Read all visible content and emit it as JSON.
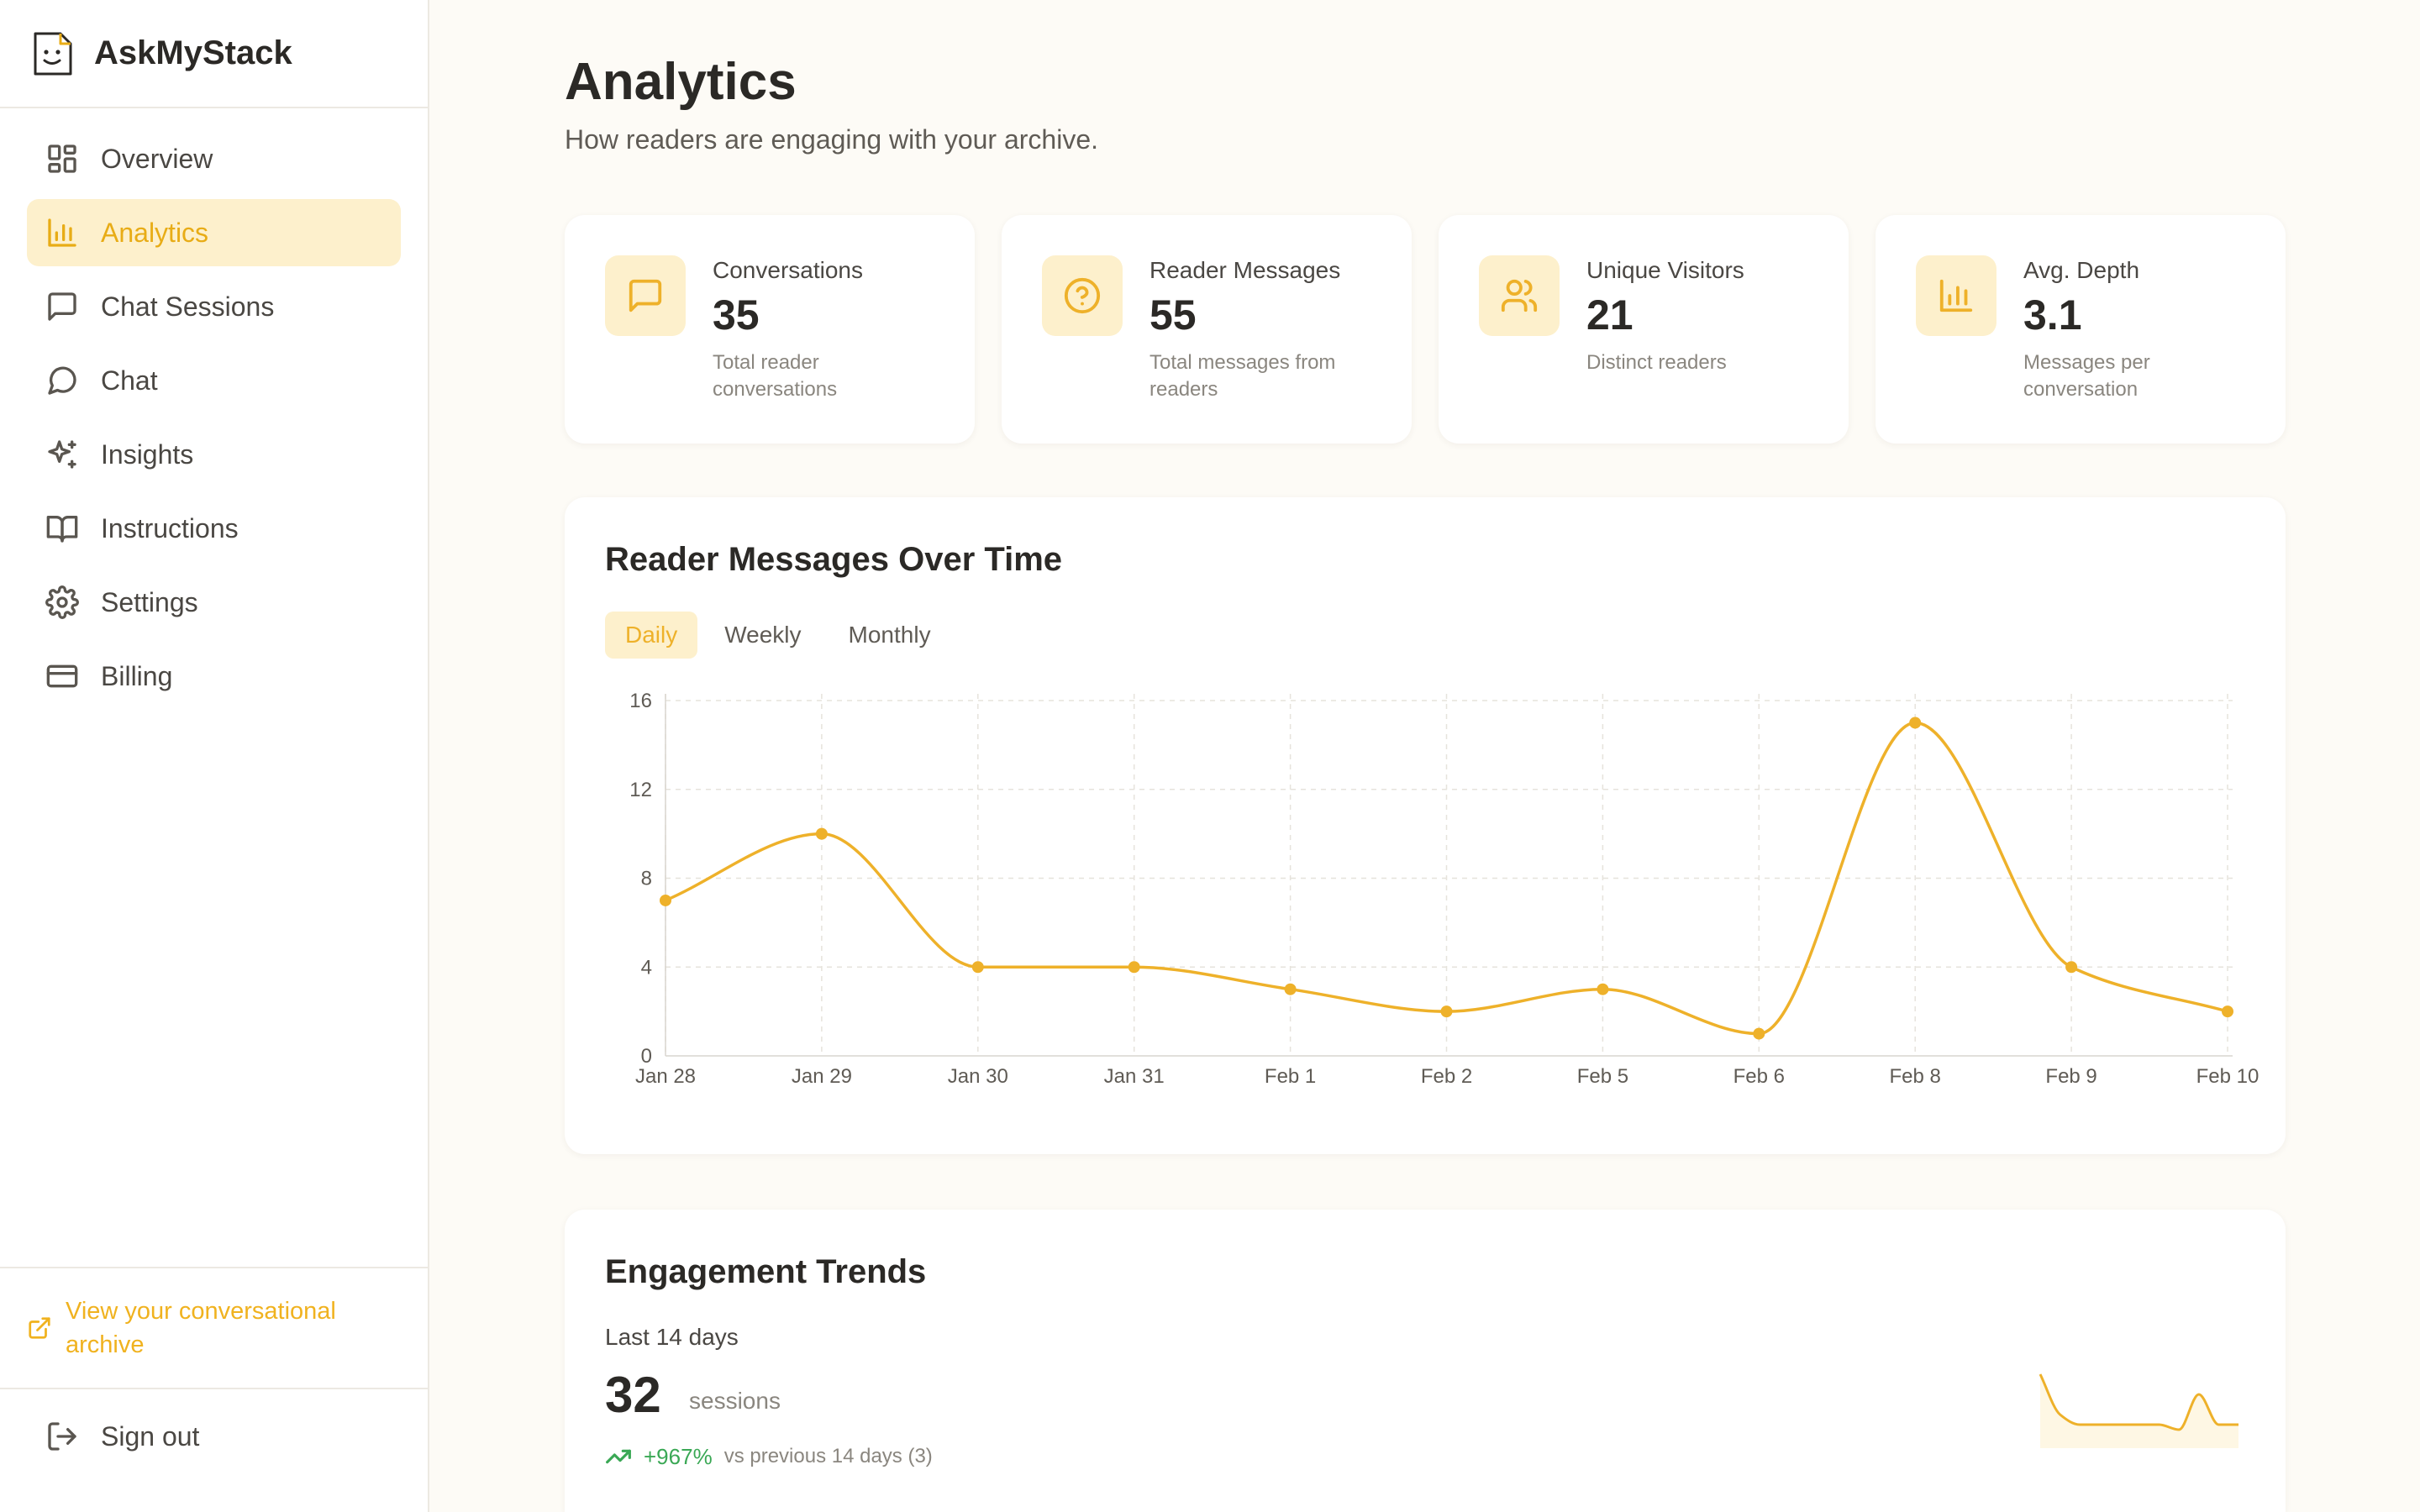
{
  "brand": {
    "name": "AskMyStack"
  },
  "nav": {
    "items": [
      {
        "label": "Overview",
        "icon": "grid-icon"
      },
      {
        "label": "Analytics",
        "icon": "bar-chart-icon",
        "active": true
      },
      {
        "label": "Chat Sessions",
        "icon": "message-square-icon"
      },
      {
        "label": "Chat",
        "icon": "message-circle-icon"
      },
      {
        "label": "Insights",
        "icon": "sparkles-icon"
      },
      {
        "label": "Instructions",
        "icon": "book-open-icon"
      },
      {
        "label": "Settings",
        "icon": "gear-icon"
      },
      {
        "label": "Billing",
        "icon": "credit-card-icon"
      }
    ],
    "archive_link": "View your conversational archive",
    "sign_out": "Sign out"
  },
  "header": {
    "title": "Analytics",
    "subtitle": "How readers are engaging with your archive."
  },
  "stats": [
    {
      "label": "Conversations",
      "value": "35",
      "desc": "Total reader conversations",
      "icon": "message-square-icon"
    },
    {
      "label": "Reader Messages",
      "value": "55",
      "desc": "Total messages from readers",
      "icon": "help-circle-icon"
    },
    {
      "label": "Unique Visitors",
      "value": "21",
      "desc": "Distinct readers",
      "icon": "users-icon"
    },
    {
      "label": "Avg. Depth",
      "value": "3.1",
      "desc": "Messages per conversation",
      "icon": "bar-chart-icon"
    }
  ],
  "messages_chart": {
    "title": "Reader Messages Over Time",
    "tabs": [
      "Daily",
      "Weekly",
      "Monthly"
    ],
    "active_tab": "Daily"
  },
  "engagement": {
    "title": "Engagement Trends",
    "period": "Last 14 days",
    "value": "32",
    "unit": "sessions",
    "change": "+967%",
    "comparison": "vs previous 14 days (3)"
  },
  "colors": {
    "accent": "#eeb12a",
    "accent_bg": "#fdf0cc",
    "positive": "#3aa855"
  },
  "chart_data": [
    {
      "type": "line",
      "title": "Reader Messages Over Time",
      "categories": [
        "Jan 28",
        "Jan 29",
        "Jan 30",
        "Jan 31",
        "Feb 1",
        "Feb 2",
        "Feb 5",
        "Feb 6",
        "Feb 8",
        "Feb 9",
        "Feb 10"
      ],
      "values": [
        7,
        10,
        4,
        4,
        3,
        2,
        3,
        1,
        15,
        4,
        2
      ],
      "yticks": [
        0,
        4,
        8,
        12,
        16
      ],
      "ylim": [
        0,
        16
      ],
      "grid": true,
      "xlabel": "",
      "ylabel": ""
    },
    {
      "type": "line",
      "title": "",
      "values": [
        6,
        2,
        1,
        1,
        1,
        1,
        1,
        0.5,
        4,
        1,
        1
      ]
    }
  ]
}
